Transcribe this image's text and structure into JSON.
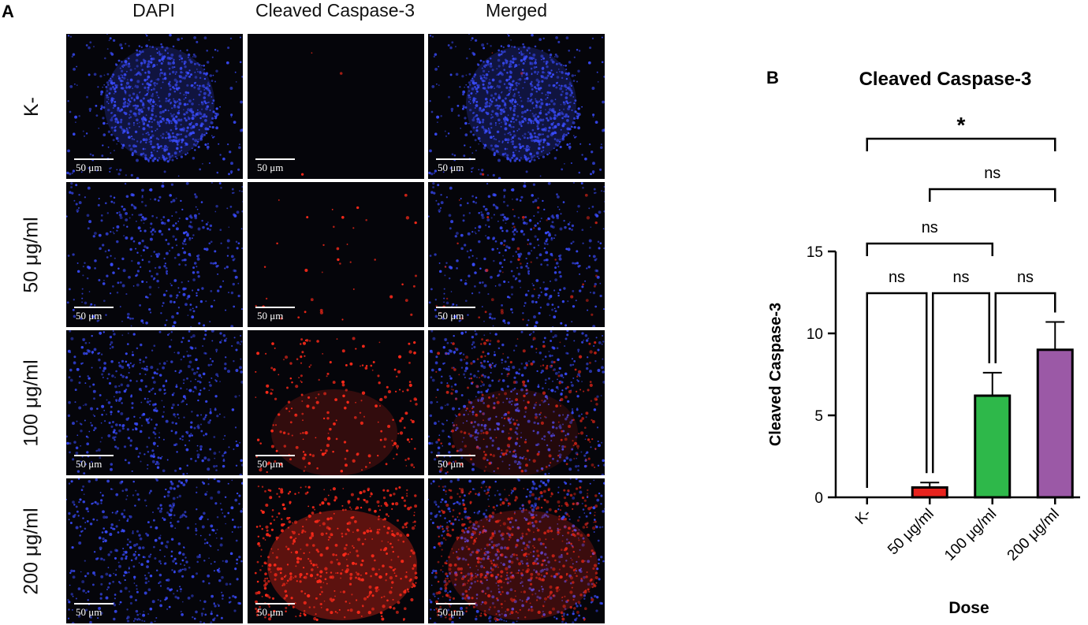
{
  "panel_a": {
    "letter": "A",
    "columns": [
      "DAPI",
      "Cleaved Caspase-3",
      "Merged"
    ],
    "rows": [
      "K-",
      "50 μg/ml",
      "100 μg/ml",
      "200 μg/ml"
    ],
    "scale_bar_label": "50 μm",
    "colors": {
      "nuclei_stain": "#3a4cff",
      "caspase_stain": "#ff2a1a",
      "background": "#05050a"
    }
  },
  "panel_b": {
    "letter": "B"
  },
  "chart_data": {
    "type": "bar",
    "title": "Cleaved Caspase-3",
    "xlabel": "Dose",
    "ylabel": "Cleaved Caspase-3",
    "ylim": [
      0,
      15
    ],
    "yticks": [
      0,
      5,
      10,
      15
    ],
    "categories": [
      "K-",
      "50 μg/ml",
      "100 μg/ml",
      "200 μg/ml"
    ],
    "values": [
      0,
      0.6,
      6.2,
      9.0
    ],
    "errors": [
      0,
      0.3,
      1.4,
      1.7
    ],
    "colors": [
      "#ffffff",
      "#e8231e",
      "#2eb84a",
      "#9b59a6"
    ],
    "significance": [
      {
        "from": 0,
        "to": 1,
        "label": "ns"
      },
      {
        "from": 1,
        "to": 2,
        "label": "ns"
      },
      {
        "from": 2,
        "to": 3,
        "label": "ns"
      },
      {
        "from": 0,
        "to": 2,
        "label": "ns"
      },
      {
        "from": 1,
        "to": 3,
        "label": "ns"
      },
      {
        "from": 0,
        "to": 3,
        "label": "*"
      }
    ]
  }
}
